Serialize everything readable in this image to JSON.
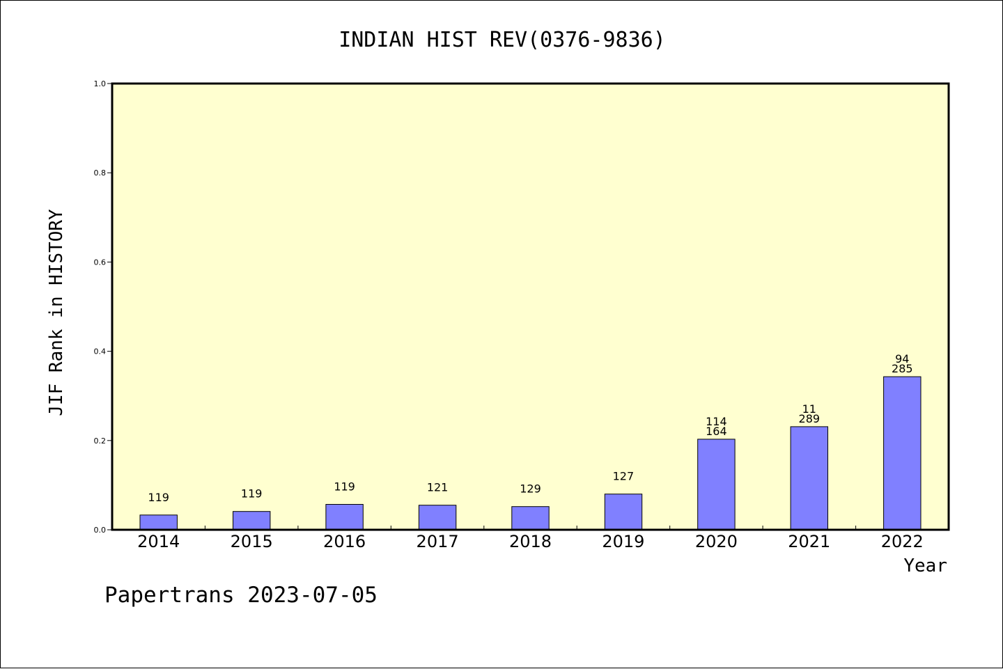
{
  "chart_data": {
    "type": "bar",
    "title": "INDIAN HIST REV(0376-9836)",
    "xlabel": "Year",
    "ylabel": "JIF Rank in HISTORY",
    "ylim": [
      0,
      1.0
    ],
    "yticks": [
      "0.0",
      "0.2",
      "0.4",
      "0.6",
      "0.8",
      "1.0"
    ],
    "ytick_values": [
      0,
      0.2,
      0.4,
      0.6,
      0.8,
      1.0
    ],
    "categories": [
      "2014",
      "2015",
      "2016",
      "2017",
      "2018",
      "2019",
      "2020",
      "2021",
      "2022"
    ],
    "values": [
      0.033,
      0.041,
      0.057,
      0.055,
      0.052,
      0.08,
      0.203,
      0.231,
      0.343
    ],
    "bar_labels": [
      [
        "119"
      ],
      [
        "119"
      ],
      [
        "119"
      ],
      [
        "121"
      ],
      [
        "129"
      ],
      [
        "127"
      ],
      [
        "114",
        "164"
      ],
      [
        "11",
        "289"
      ],
      [
        "94",
        "285"
      ]
    ],
    "grid": false,
    "colors": {
      "plot_background": "#ffffd0",
      "bar_fill": "#8080ff",
      "bar_stroke": "#000000"
    }
  },
  "footer": {
    "text": "Papertrans 2023-07-05"
  }
}
